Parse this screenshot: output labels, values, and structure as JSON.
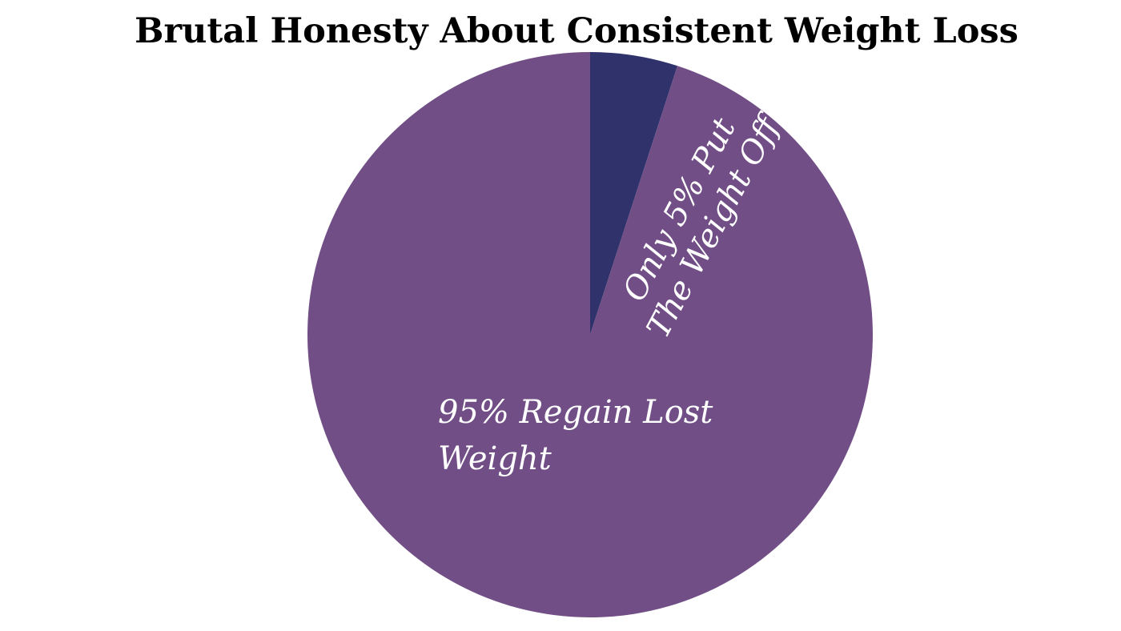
{
  "chart_data": {
    "type": "pie",
    "title": "Brutal Honesty About Consistent Weight Loss",
    "start_angle_deg": 0,
    "direction": "clockwise",
    "slices": [
      {
        "label_lines": [
          "Only 5% Put",
          "The Weight Off"
        ],
        "value": 5,
        "color": "#30326b"
      },
      {
        "label_lines": [
          "95% Regain Lost",
          "Weight"
        ],
        "value": 95,
        "color": "#714f86"
      }
    ]
  }
}
